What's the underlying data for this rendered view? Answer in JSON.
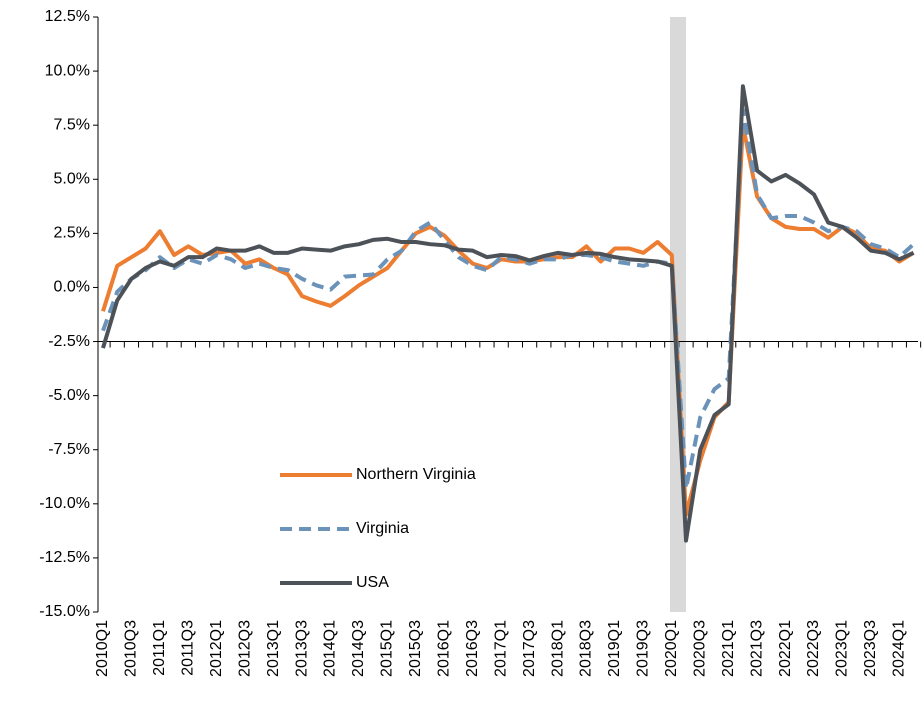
{
  "chart_data": {
    "type": "line",
    "categories": [
      "2010Q1",
      null,
      "2010Q3",
      null,
      "2011Q1",
      null,
      "2011Q3",
      null,
      "2012Q1",
      null,
      "2012Q3",
      null,
      "2013Q1",
      null,
      "2013Q3",
      null,
      "2014Q1",
      null,
      "2014Q3",
      null,
      "2015Q1",
      null,
      "2015Q3",
      null,
      "2016Q1",
      null,
      "2016Q3",
      null,
      "2017Q1",
      null,
      "2017Q3",
      null,
      "2018Q1",
      null,
      "2018Q3",
      null,
      "2019Q1",
      null,
      "2019Q3",
      null,
      "2020Q1",
      null,
      "2020Q3",
      null,
      "2021Q1",
      null,
      "2021Q3",
      null,
      "2022Q1",
      null,
      "2022Q3",
      null,
      "2023Q1",
      null,
      "2023Q3",
      null,
      "2024Q1",
      null
    ],
    "series": [
      {
        "name": "Northern Virginia",
        "color": "#ed7d31",
        "style": "solid",
        "values": [
          -1.1,
          1.0,
          1.4,
          1.8,
          2.6,
          1.5,
          1.9,
          1.5,
          1.6,
          1.7,
          1.1,
          1.3,
          0.9,
          0.6,
          -0.4,
          -0.65,
          -0.85,
          -0.4,
          0.1,
          0.5,
          0.9,
          1.7,
          2.5,
          2.8,
          2.4,
          1.7,
          1.1,
          0.9,
          1.3,
          1.2,
          1.2,
          1.3,
          1.4,
          1.4,
          1.9,
          1.2,
          1.8,
          1.8,
          1.6,
          2.1,
          1.5,
          -10.5,
          -8.0,
          -6.0,
          -5.3,
          7.5,
          4.2,
          3.2,
          2.8,
          2.7,
          2.7,
          2.3,
          2.8,
          2.5,
          1.8,
          1.7,
          1.2,
          1.6
        ]
      },
      {
        "name": "Virginia",
        "color": "#6b92b8",
        "style": "dashed",
        "values": [
          -2.0,
          -0.2,
          0.4,
          0.8,
          1.4,
          0.9,
          1.3,
          1.1,
          1.5,
          1.3,
          0.9,
          1.1,
          0.9,
          0.8,
          0.4,
          0.1,
          -0.1,
          0.5,
          0.55,
          0.6,
          1.3,
          1.7,
          2.6,
          3.0,
          2.2,
          1.4,
          1.0,
          0.8,
          1.4,
          1.3,
          1.1,
          1.3,
          1.3,
          1.5,
          1.5,
          1.4,
          1.2,
          1.1,
          1.0,
          1.2,
          1.1,
          -9.3,
          -6.0,
          -4.7,
          -4.2,
          8.2,
          4.3,
          3.2,
          3.3,
          3.3,
          3.0,
          2.6,
          2.8,
          2.6,
          2.0,
          1.8,
          1.4,
          2.0
        ]
      },
      {
        "name": "USA",
        "color": "#4d5259",
        "style": "solid",
        "values": [
          -2.8,
          -0.6,
          0.4,
          0.9,
          1.2,
          1.0,
          1.4,
          1.4,
          1.8,
          1.7,
          1.7,
          1.9,
          1.6,
          1.6,
          1.8,
          1.75,
          1.7,
          1.9,
          2.0,
          2.2,
          2.25,
          2.1,
          2.1,
          2.0,
          1.95,
          1.75,
          1.7,
          1.4,
          1.5,
          1.45,
          1.25,
          1.45,
          1.6,
          1.5,
          1.6,
          1.55,
          1.4,
          1.3,
          1.25,
          1.2,
          1.0,
          -11.7,
          -7.5,
          -5.9,
          -5.4,
          9.3,
          5.4,
          4.9,
          5.2,
          4.8,
          4.3,
          3.0,
          2.8,
          2.3,
          1.7,
          1.6,
          1.3,
          1.6
        ]
      }
    ],
    "ylim": [
      -15,
      12.5
    ],
    "yticks": [
      {
        "value": -15,
        "label": "-15.0%"
      },
      {
        "value": -12.5,
        "label": "-12.5%"
      },
      {
        "value": -10,
        "label": "-10.0%"
      },
      {
        "value": -7.5,
        "label": "-7.5%"
      },
      {
        "value": -5,
        "label": "-5.0%"
      },
      {
        "value": -2.5,
        "label": "-2.5%"
      },
      {
        "value": 0,
        "label": "0.0%"
      },
      {
        "value": 2.5,
        "label": "2.5%"
      },
      {
        "value": 5,
        "label": "5.0%"
      },
      {
        "value": 7.5,
        "label": "7.5%"
      },
      {
        "value": 10,
        "label": "10.0%"
      },
      {
        "value": 12.5,
        "label": "12.5%"
      }
    ],
    "x_axis_at": -2.5,
    "legend": "lower-left"
  }
}
